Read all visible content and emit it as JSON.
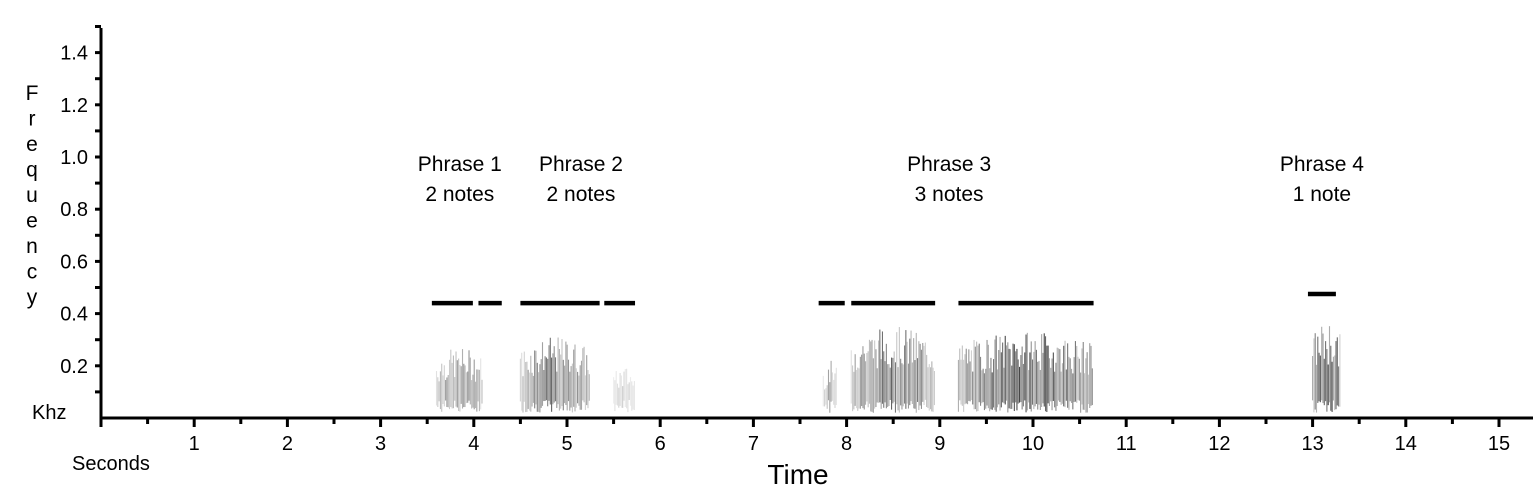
{
  "chart_data": {
    "type": "spectrogram",
    "xlabel": "Time",
    "x_unit_label": "Seconds",
    "ylabel": "Frequency",
    "y_unit_label": "Khz",
    "xlim": [
      0,
      15.4
    ],
    "ylim": [
      0,
      1.5
    ],
    "x_ticks": [
      {
        "value": 1,
        "label": "1"
      },
      {
        "value": 2,
        "label": "2"
      },
      {
        "value": 3,
        "label": "3"
      },
      {
        "value": 4,
        "label": "4"
      },
      {
        "value": 5,
        "label": "5"
      },
      {
        "value": 6,
        "label": "6"
      },
      {
        "value": 7,
        "label": "7"
      },
      {
        "value": 8,
        "label": "8"
      },
      {
        "value": 9,
        "label": "9"
      },
      {
        "value": 10,
        "label": "10"
      },
      {
        "value": 11,
        "label": "11"
      },
      {
        "value": 12,
        "label": "12"
      },
      {
        "value": 13,
        "label": "13"
      },
      {
        "value": 14,
        "label": "14"
      },
      {
        "value": 15,
        "label": "15"
      }
    ],
    "x_minor_step": 0.5,
    "y_ticks": [
      {
        "value": 0.2,
        "label": "0.2"
      },
      {
        "value": 0.4,
        "label": "0.4"
      },
      {
        "value": 0.6,
        "label": "0.6"
      },
      {
        "value": 0.8,
        "label": "0.8"
      },
      {
        "value": 1.0,
        "label": "1.0"
      },
      {
        "value": 1.2,
        "label": "1.2"
      },
      {
        "value": 1.4,
        "label": "1.4"
      }
    ],
    "y_minor_step": 0.1,
    "phrases": [
      {
        "name": "Phrase 1",
        "notes_label": "2 notes",
        "label_x": 3.85,
        "bars": [
          [
            3.55,
            3.99
          ],
          [
            4.05,
            4.3
          ]
        ],
        "bar_y": 0.44
      },
      {
        "name": "Phrase 2",
        "notes_label": "2 notes",
        "label_x": 5.15,
        "bars": [
          [
            4.5,
            5.35
          ],
          [
            5.4,
            5.73
          ]
        ],
        "bar_y": 0.44
      },
      {
        "name": "Phrase 3",
        "notes_label": "3 notes",
        "label_x": 9.1,
        "bars": [
          [
            7.7,
            7.98
          ],
          [
            8.05,
            8.95
          ],
          [
            9.2,
            10.65
          ]
        ],
        "bar_y": 0.44
      },
      {
        "name": "Phrase 4",
        "notes_label": "1 note",
        "label_x": 13.1,
        "bars": [
          [
            12.95,
            13.25
          ]
        ],
        "bar_y": 0.475
      }
    ],
    "energy_segments": [
      {
        "start": 3.6,
        "end": 4.1,
        "max_khz": 0.27,
        "intensity": 0.55
      },
      {
        "start": 4.5,
        "end": 5.25,
        "max_khz": 0.31,
        "intensity": 0.7
      },
      {
        "start": 5.5,
        "end": 5.73,
        "max_khz": 0.2,
        "intensity": 0.25
      },
      {
        "start": 7.75,
        "end": 7.9,
        "max_khz": 0.22,
        "intensity": 0.45
      },
      {
        "start": 8.05,
        "end": 8.95,
        "max_khz": 0.35,
        "intensity": 0.7
      },
      {
        "start": 9.2,
        "end": 10.65,
        "max_khz": 0.33,
        "intensity": 0.85
      },
      {
        "start": 13.0,
        "end": 13.3,
        "max_khz": 0.37,
        "intensity": 0.95
      }
    ],
    "grid": false,
    "legend": "none"
  }
}
